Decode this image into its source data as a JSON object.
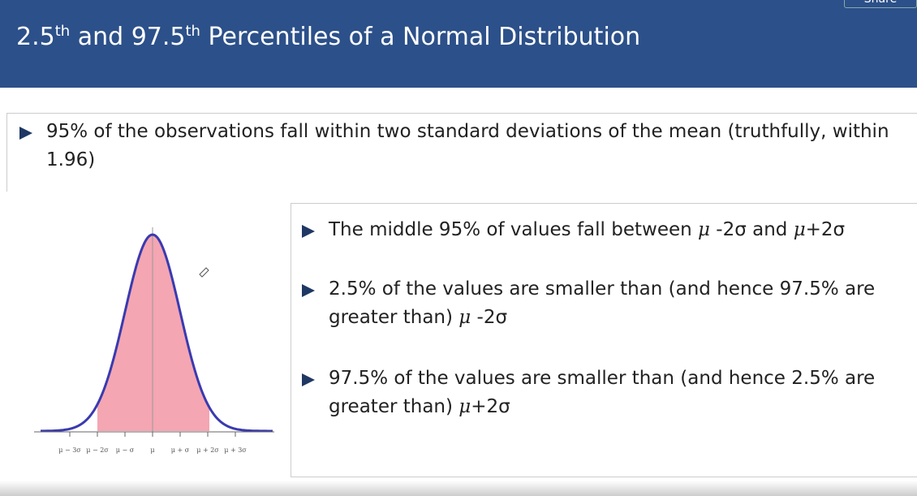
{
  "header": {
    "share": "Share",
    "title": [
      "2.5",
      "th",
      " and 97.5",
      "th",
      " Percentiles of a Normal Distribution"
    ]
  },
  "intro": [
    "95% of the observations fall within two standard deviations of the mean (truthfully, within",
    "1.96)"
  ],
  "bullets": [
    [
      [
        "The middle 95% of values fall between ",
        "μ",
        " -2σ and ",
        "μ",
        "+2σ"
      ]
    ],
    [
      [
        "2.5% of the values are smaller than (and hence 97.5% are"
      ],
      [
        "greater than) ",
        "μ",
        " -2σ"
      ]
    ],
    [
      [
        "97.5% of the values are smaller than (and hence 2.5% are"
      ],
      [
        "greater than) ",
        "μ",
        "+2σ"
      ]
    ]
  ],
  "curve_labels": [
    "μ − 3σ",
    "μ − 2σ",
    "μ − σ",
    "μ",
    "μ + σ",
    "μ + 2σ",
    "μ + 3σ"
  ]
}
